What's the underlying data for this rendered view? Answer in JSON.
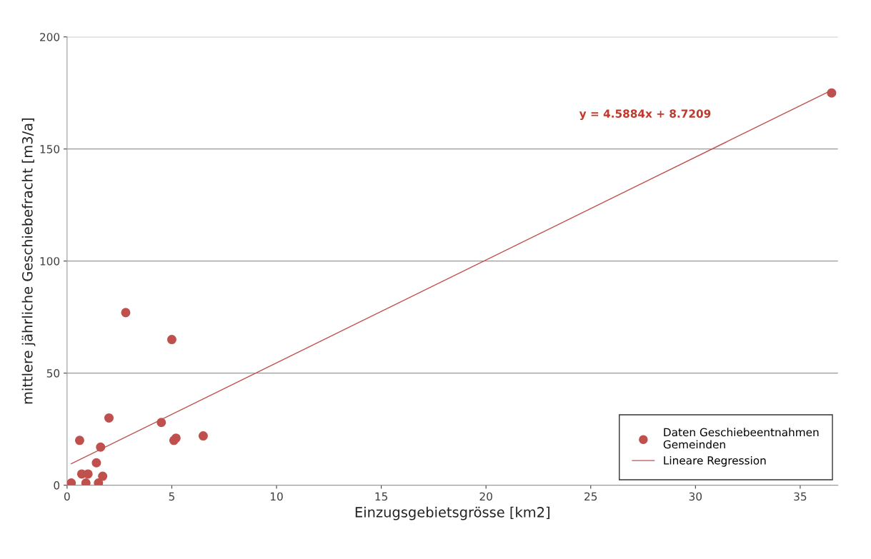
{
  "chart_data": {
    "type": "scatter",
    "xlabel": "Einzugsgebietsgrösse [km2]",
    "ylabel": "mittlere jährliche Geschiebefracht [m3/a]",
    "series": [
      {
        "name": "Daten Geschiebeentnahmen\nGemeinden",
        "color": "#c0504d",
        "marker": "circle",
        "x": [
          0.2,
          0.6,
          0.7,
          1.0,
          0.9,
          1.4,
          1.6,
          1.5,
          1.7,
          2.0,
          2.8,
          4.5,
          5.0,
          5.1,
          5.2,
          6.5,
          36.5
        ],
        "values": [
          1,
          20,
          5,
          5,
          1,
          10,
          17,
          1,
          4,
          30,
          77,
          28,
          65,
          20,
          21,
          22,
          175
        ]
      },
      {
        "name": "Lineare Regression",
        "type": "line",
        "color": "#c0504d",
        "marker": "none",
        "line_style": "solid",
        "x": [
          0.2,
          36.5
        ],
        "values": [
          9.6,
          176.2
        ]
      }
    ],
    "annotations": [
      "y = 4.5884x + 8.7209"
    ],
    "xlim": [
      0,
      36.8
    ],
    "ylim": [
      0,
      200
    ],
    "xticks": [
      0,
      5,
      10,
      15,
      20,
      25,
      30,
      35
    ],
    "yticks": [
      0,
      50,
      100,
      150,
      200
    ],
    "grid": "y",
    "legend": "bottom right"
  }
}
